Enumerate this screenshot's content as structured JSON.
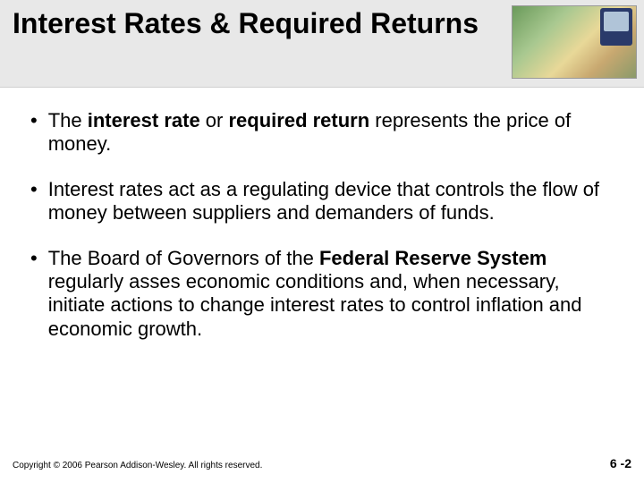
{
  "slide": {
    "title": "Interest Rates & Required Returns",
    "bullets": [
      {
        "pre": "The ",
        "bold1": "interest rate",
        "mid1": " or ",
        "bold2": "required return",
        "post": " represents the price of money."
      },
      {
        "pre": "Interest rates act as a regulating device that controls the flow of money between suppliers and demanders of funds.",
        "bold1": "",
        "mid1": "",
        "bold2": "",
        "post": ""
      },
      {
        "pre": "The Board of Governors of the ",
        "bold1": "Federal Reserve System",
        "mid1": "",
        "bold2": "",
        "post": " regularly asses economic conditions and, when necessary, initiate actions to change interest rates to control inflation and economic growth."
      }
    ],
    "copyright": "Copyright © 2006 Pearson Addison-Wesley. All rights reserved.",
    "page_number": "6 -2"
  },
  "style": {
    "title_fontsize": 32,
    "body_fontsize": 22,
    "footer_fontsize": 10,
    "pagenum_fontsize": 14,
    "header_bg": "#e8e8e8",
    "body_bg": "#ffffff",
    "text_color": "#000000"
  }
}
